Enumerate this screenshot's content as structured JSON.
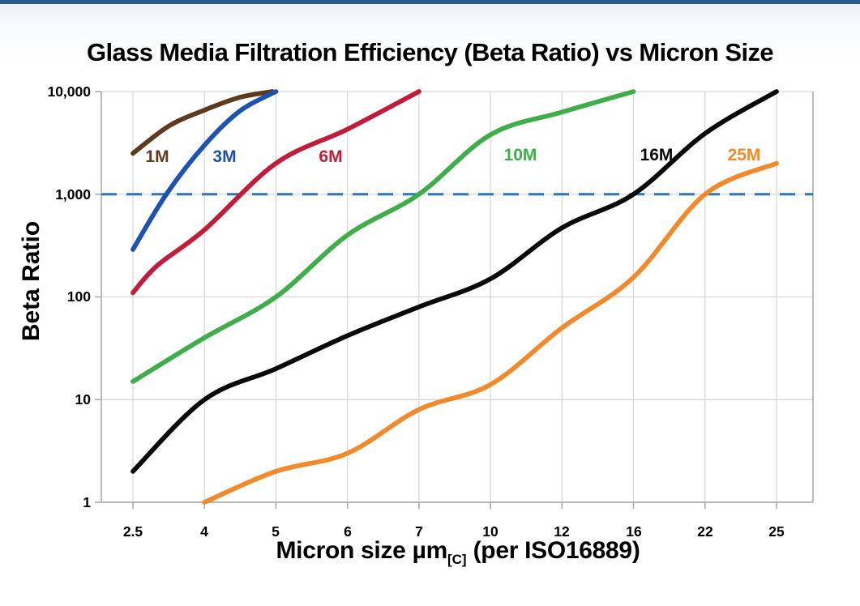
{
  "colors": {
    "top_bar": "#2B5D8C",
    "background": "#FFFFFF",
    "title_text": "#000000"
  },
  "chart_data": {
    "type": "line",
    "title": "Glass Media Filtration Efficiency (Beta Ratio) vs Micron Size",
    "ylabel": "Beta Ratio",
    "xlabel": {
      "main": "Micron size µm",
      "sub": "[C]",
      "tail": " (per ISO16889)"
    },
    "x_scale": "categorical",
    "y_scale": "log",
    "ylim": [
      1,
      10000
    ],
    "grid": true,
    "grid_color": "#D8D8D8",
    "axis_color": "#ABABAB",
    "x_categories": [
      "2.5",
      "4",
      "5",
      "6",
      "7",
      "10",
      "12",
      "16",
      "22",
      "25"
    ],
    "y_tick_labels": [
      "10,000",
      "1,000",
      "100",
      "10",
      "1"
    ],
    "y_tick_values": [
      10000,
      1000,
      100,
      10,
      1
    ],
    "reference_line": {
      "value": 1000,
      "style": "dashed",
      "color": "#2E75B6"
    },
    "legend_position": "inline-labels-above-curves",
    "series": [
      {
        "name": "1M",
        "color": "#5C3A1E",
        "points": [
          [
            2.5,
            2500
          ],
          [
            3.25,
            4600
          ],
          [
            4,
            6600
          ],
          [
            4.5,
            8800
          ],
          [
            4.95,
            10000
          ]
        ]
      },
      {
        "name": "3M",
        "color": "#1D52B0",
        "points": [
          [
            2.5,
            290
          ],
          [
            3.2,
            1000
          ],
          [
            4,
            3000
          ],
          [
            4.5,
            6500
          ],
          [
            5,
            10000
          ]
        ]
      },
      {
        "name": "6M",
        "color": "#C11D3B",
        "points": [
          [
            2.5,
            110
          ],
          [
            3,
            200
          ],
          [
            4,
            450
          ],
          [
            5,
            2000
          ],
          [
            6,
            4300
          ],
          [
            7,
            10000
          ]
        ]
      },
      {
        "name": "10M",
        "color": "#3FAE4A",
        "points": [
          [
            2.5,
            15
          ],
          [
            4,
            40
          ],
          [
            5,
            100
          ],
          [
            6,
            400
          ],
          [
            7,
            1000
          ],
          [
            10,
            3800
          ],
          [
            12,
            6300
          ],
          [
            16,
            10000
          ]
        ]
      },
      {
        "name": "16M",
        "color": "#0A0A0A",
        "points": [
          [
            2.5,
            2
          ],
          [
            4,
            10
          ],
          [
            5,
            20
          ],
          [
            6,
            42
          ],
          [
            7,
            80
          ],
          [
            10,
            150
          ],
          [
            12,
            470
          ],
          [
            16,
            1000
          ],
          [
            22,
            3900
          ],
          [
            25,
            10000
          ]
        ]
      },
      {
        "name": "25M",
        "color": "#F08A2C",
        "points": [
          [
            4,
            1
          ],
          [
            5,
            2
          ],
          [
            6,
            3
          ],
          [
            7,
            8
          ],
          [
            10,
            14
          ],
          [
            12,
            50
          ],
          [
            16,
            155
          ],
          [
            22,
            1000
          ],
          [
            25,
            2000
          ]
        ]
      }
    ]
  }
}
